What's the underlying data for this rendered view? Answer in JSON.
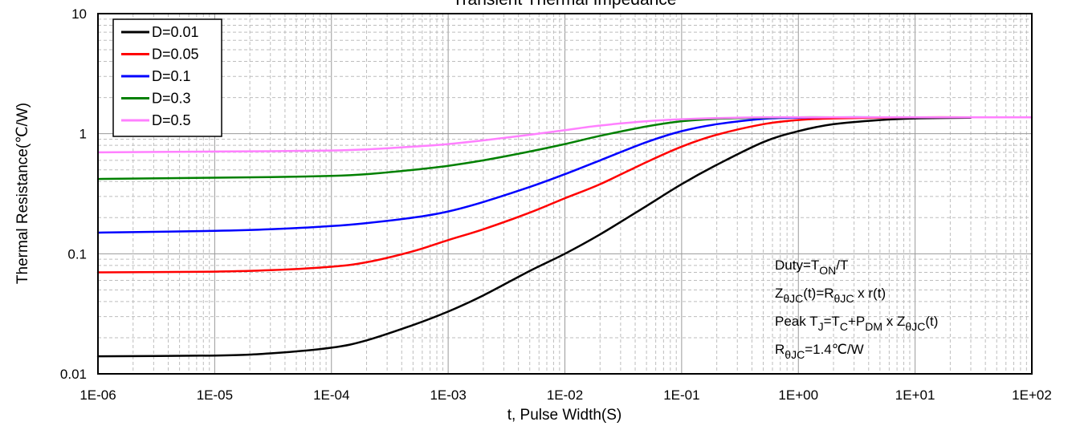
{
  "chart_data": {
    "type": "line",
    "title": "Transient Thermal Impedance",
    "xlabel": "t, Pulse Width(S)",
    "ylabel": "Thermal Resistance(℃/W)",
    "x_scale": "log",
    "y_scale": "log",
    "xlim": [
      1e-06,
      100
    ],
    "ylim": [
      0.01,
      10
    ],
    "grid": true,
    "x_tick_labels": [
      "1E-06",
      "1E-05",
      "1E-04",
      "1E-03",
      "1E-02",
      "1E-01",
      "1E+00",
      "1E+01",
      "1E+02"
    ],
    "y_tick_labels": [
      "0.01",
      "0.1",
      "1",
      "10"
    ],
    "legend_position": "top-left",
    "series": [
      {
        "name": "D=0.01",
        "color": "#000000",
        "x": [
          1e-06,
          1e-05,
          3e-05,
          0.0001,
          0.0002,
          0.0005,
          0.001,
          0.002,
          0.005,
          0.01,
          0.02,
          0.05,
          0.1,
          0.2,
          0.5,
          1,
          2,
          5,
          10,
          30
        ],
        "y": [
          0.014,
          0.0142,
          0.0148,
          0.0165,
          0.019,
          0.0255,
          0.033,
          0.045,
          0.072,
          0.1,
          0.145,
          0.25,
          0.38,
          0.55,
          0.85,
          1.05,
          1.2,
          1.3,
          1.34,
          1.36
        ]
      },
      {
        "name": "D=0.05",
        "color": "#ff0000",
        "x": [
          1e-06,
          1e-05,
          3e-05,
          0.0001,
          0.0002,
          0.0005,
          0.001,
          0.002,
          0.005,
          0.01,
          0.02,
          0.05,
          0.1,
          0.2,
          0.5,
          1,
          2,
          5,
          10,
          30
        ],
        "y": [
          0.07,
          0.071,
          0.073,
          0.078,
          0.085,
          0.105,
          0.13,
          0.16,
          0.22,
          0.29,
          0.38,
          0.58,
          0.78,
          0.98,
          1.2,
          1.3,
          1.34,
          1.36,
          1.37,
          1.37
        ]
      },
      {
        "name": "D=0.1",
        "color": "#0000ff",
        "x": [
          1e-06,
          1e-05,
          3e-05,
          0.0001,
          0.0002,
          0.0005,
          0.001,
          0.002,
          0.005,
          0.01,
          0.02,
          0.05,
          0.1,
          0.2,
          0.5,
          1,
          2,
          5,
          10,
          30
        ],
        "y": [
          0.15,
          0.155,
          0.16,
          0.17,
          0.18,
          0.2,
          0.225,
          0.27,
          0.36,
          0.46,
          0.6,
          0.85,
          1.05,
          1.2,
          1.33,
          1.36,
          1.37,
          1.37,
          1.37,
          1.37
        ]
      },
      {
        "name": "D=0.3",
        "color": "#008000",
        "x": [
          1e-06,
          1e-05,
          3e-05,
          0.0001,
          0.0002,
          0.0005,
          0.001,
          0.002,
          0.005,
          0.01,
          0.02,
          0.05,
          0.1,
          0.2,
          0.5,
          1,
          2,
          5,
          10,
          30
        ],
        "y": [
          0.42,
          0.43,
          0.435,
          0.445,
          0.46,
          0.5,
          0.54,
          0.6,
          0.71,
          0.82,
          0.96,
          1.15,
          1.27,
          1.33,
          1.36,
          1.37,
          1.37,
          1.37,
          1.37,
          1.37
        ]
      },
      {
        "name": "D=0.5",
        "color": "#ff80ff",
        "x": [
          1e-06,
          1e-05,
          3e-05,
          0.0001,
          0.0002,
          0.0005,
          0.001,
          0.002,
          0.005,
          0.01,
          0.02,
          0.05,
          0.1,
          0.2,
          0.5,
          1,
          2,
          5,
          10,
          30,
          100
        ],
        "y": [
          0.7,
          0.71,
          0.715,
          0.725,
          0.74,
          0.78,
          0.82,
          0.88,
          0.98,
          1.07,
          1.17,
          1.27,
          1.32,
          1.35,
          1.37,
          1.37,
          1.37,
          1.37,
          1.37,
          1.37,
          1.37
        ]
      }
    ],
    "annotations": [
      {
        "name": "duty-annotation",
        "parts": [
          {
            "t": "Duty=T"
          },
          {
            "t": "ON",
            "sub": true
          },
          {
            "t": "/T"
          }
        ]
      },
      {
        "name": "zthjc-annotation",
        "parts": [
          {
            "t": "Z"
          },
          {
            "t": "θJC",
            "sub": true
          },
          {
            "t": "(t)=R"
          },
          {
            "t": "θJC",
            "sub": true
          },
          {
            "t": " x r(t)"
          }
        ]
      },
      {
        "name": "peak-tj-annotation",
        "parts": [
          {
            "t": "Peak T"
          },
          {
            "t": "J",
            "sub": true
          },
          {
            "t": "=T"
          },
          {
            "t": "C",
            "sub": true
          },
          {
            "t": "+P"
          },
          {
            "t": "DM",
            "sub": true
          },
          {
            "t": " x Z"
          },
          {
            "t": "θJC",
            "sub": true
          },
          {
            "t": "(t)"
          }
        ]
      },
      {
        "name": "rthjc-annotation",
        "parts": [
          {
            "t": "R"
          },
          {
            "t": "θJC",
            "sub": true
          },
          {
            "t": "=1.4℃/W"
          }
        ]
      }
    ]
  }
}
